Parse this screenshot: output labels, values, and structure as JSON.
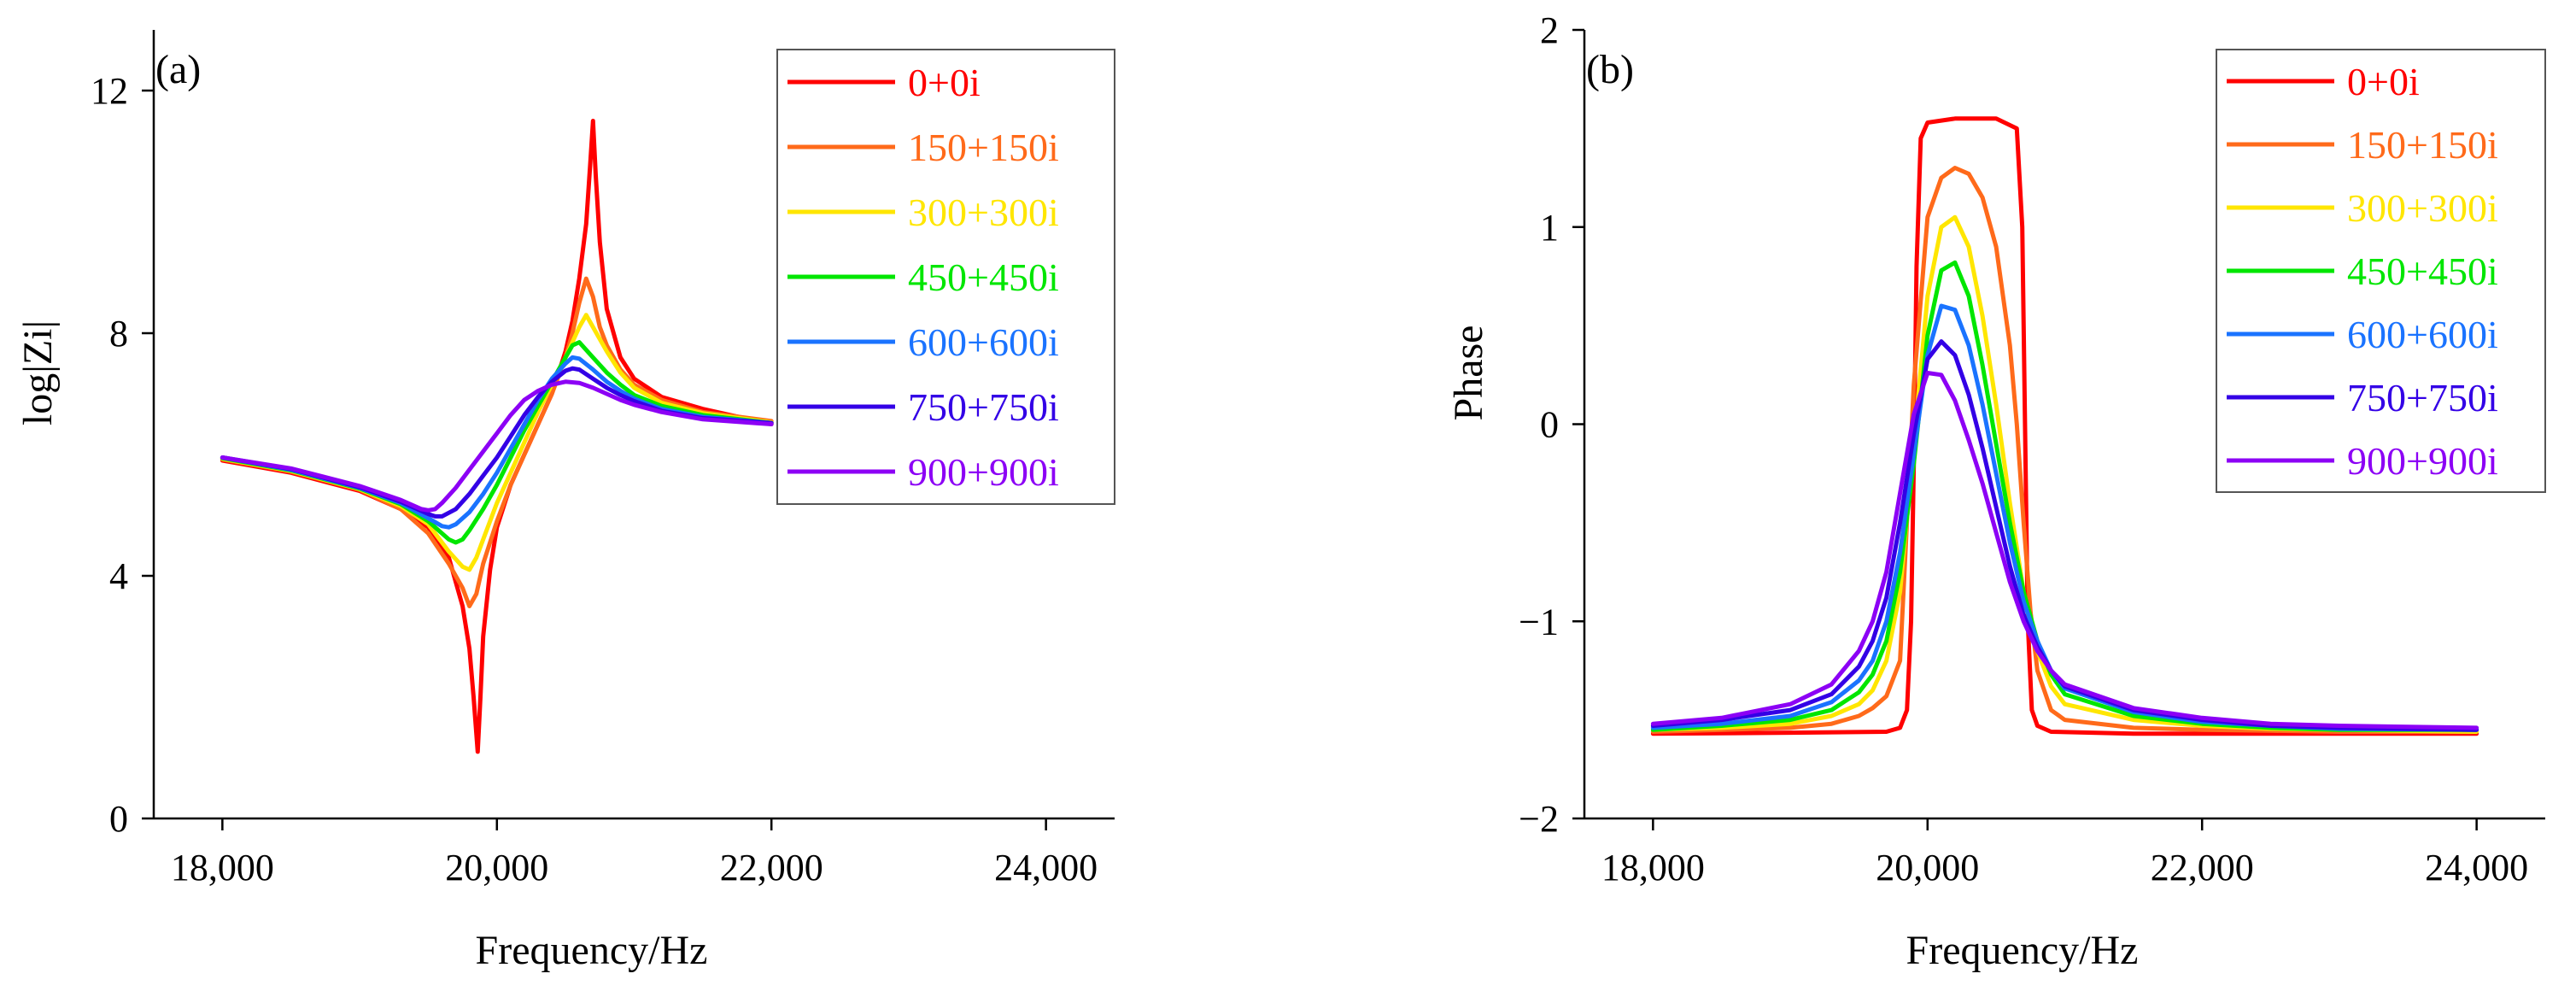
{
  "chart_data": [
    {
      "type": "line",
      "panel_label": "(a)",
      "xlabel": "Frequency/Hz",
      "ylabel": "log|Zi|",
      "xlim": [
        17500,
        24500
      ],
      "ylim": [
        0,
        13
      ],
      "xticks": [
        18000,
        20000,
        22000,
        24000
      ],
      "xtick_labels": [
        "18,000",
        "20,000",
        "22,000",
        "24,000"
      ],
      "yticks": [
        0,
        4,
        8,
        12
      ],
      "ytick_labels": [
        "0",
        "4",
        "8",
        "12"
      ],
      "legend_position": "top-right",
      "series": [
        {
          "name": "0+0i",
          "color": "#ff0000",
          "x": [
            18000,
            18500,
            19000,
            19300,
            19500,
            19650,
            19750,
            19800,
            19830,
            19860,
            19880,
            19900,
            19950,
            20000,
            20100,
            20200,
            20300,
            20400,
            20500,
            20550,
            20600,
            20650,
            20680,
            20700,
            20720,
            20750,
            20800,
            20900,
            21000,
            21200,
            21500,
            22000
          ],
          "y": [
            5.9,
            5.7,
            5.4,
            5.1,
            4.8,
            4.3,
            3.5,
            2.8,
            2.0,
            1.1,
            2.0,
            3.0,
            4.1,
            4.8,
            5.5,
            6.0,
            6.5,
            7.0,
            7.7,
            8.2,
            8.9,
            9.8,
            10.8,
            11.5,
            10.6,
            9.5,
            8.4,
            7.6,
            7.25,
            6.95,
            6.75,
            6.5
          ]
        },
        {
          "name": "150+150i",
          "color": "#ff6a1a",
          "x": [
            18000,
            18500,
            19000,
            19300,
            19500,
            19650,
            19750,
            19800,
            19850,
            19900,
            20000,
            20100,
            20200,
            20300,
            20400,
            20500,
            20550,
            20600,
            20650,
            20700,
            20750,
            20800,
            20900,
            21000,
            21200,
            21500,
            22000
          ],
          "y": [
            5.92,
            5.72,
            5.42,
            5.1,
            4.7,
            4.2,
            3.8,
            3.5,
            3.7,
            4.2,
            4.9,
            5.5,
            6.0,
            6.5,
            7.0,
            7.6,
            8.0,
            8.5,
            8.9,
            8.6,
            8.1,
            7.8,
            7.4,
            7.15,
            6.9,
            6.7,
            6.55
          ]
        },
        {
          "name": "300+300i",
          "color": "#ffe600",
          "x": [
            18000,
            18500,
            19000,
            19300,
            19500,
            19650,
            19750,
            19800,
            19850,
            19900,
            20000,
            20100,
            20200,
            20300,
            20400,
            20500,
            20600,
            20650,
            20700,
            20800,
            20900,
            21000,
            21200,
            21500,
            22000
          ],
          "y": [
            5.93,
            5.73,
            5.43,
            5.15,
            4.85,
            4.4,
            4.15,
            4.1,
            4.3,
            4.6,
            5.2,
            5.7,
            6.2,
            6.7,
            7.15,
            7.6,
            8.1,
            8.3,
            8.1,
            7.7,
            7.35,
            7.1,
            6.85,
            6.68,
            6.53
          ]
        },
        {
          "name": "450+450i",
          "color": "#00e600",
          "x": [
            18000,
            18500,
            19000,
            19300,
            19500,
            19650,
            19700,
            19750,
            19800,
            19900,
            20000,
            20100,
            20200,
            20300,
            20400,
            20500,
            20550,
            20600,
            20700,
            20800,
            20900,
            21000,
            21200,
            21500,
            22000
          ],
          "y": [
            5.94,
            5.74,
            5.44,
            5.18,
            4.9,
            4.6,
            4.55,
            4.6,
            4.75,
            5.1,
            5.5,
            5.95,
            6.4,
            6.8,
            7.2,
            7.6,
            7.8,
            7.85,
            7.6,
            7.35,
            7.15,
            6.98,
            6.8,
            6.65,
            6.52
          ]
        },
        {
          "name": "600+600i",
          "color": "#1a73ff",
          "x": [
            18000,
            18500,
            19000,
            19300,
            19500,
            19600,
            19650,
            19700,
            19800,
            19900,
            20000,
            20100,
            20200,
            20300,
            20400,
            20500,
            20550,
            20600,
            20700,
            20800,
            20900,
            21000,
            21200,
            21500,
            22000
          ],
          "y": [
            5.95,
            5.75,
            5.45,
            5.2,
            4.95,
            4.82,
            4.8,
            4.85,
            5.05,
            5.35,
            5.7,
            6.1,
            6.5,
            6.9,
            7.25,
            7.5,
            7.6,
            7.58,
            7.4,
            7.2,
            7.05,
            6.92,
            6.75,
            6.62,
            6.52
          ]
        },
        {
          "name": "750+750i",
          "color": "#3300e6",
          "x": [
            18000,
            18500,
            19000,
            19300,
            19500,
            19550,
            19600,
            19700,
            19800,
            19900,
            20000,
            20100,
            20200,
            20300,
            20400,
            20500,
            20550,
            20600,
            20700,
            20800,
            20900,
            21000,
            21200,
            21500,
            22000
          ],
          "y": [
            5.95,
            5.76,
            5.46,
            5.22,
            5.02,
            4.98,
            4.98,
            5.1,
            5.35,
            5.65,
            5.95,
            6.3,
            6.65,
            6.95,
            7.2,
            7.38,
            7.42,
            7.4,
            7.25,
            7.1,
            6.98,
            6.88,
            6.72,
            6.6,
            6.52
          ]
        },
        {
          "name": "900+900i",
          "color": "#8c00f5",
          "x": [
            18000,
            18500,
            19000,
            19300,
            19450,
            19500,
            19550,
            19600,
            19700,
            19800,
            19900,
            20000,
            20100,
            20200,
            20300,
            20400,
            20500,
            20600,
            20700,
            20800,
            20900,
            21000,
            21200,
            21500,
            22000
          ],
          "y": [
            5.95,
            5.77,
            5.48,
            5.25,
            5.1,
            5.08,
            5.1,
            5.2,
            5.45,
            5.75,
            6.05,
            6.35,
            6.65,
            6.9,
            7.05,
            7.15,
            7.2,
            7.18,
            7.1,
            7.0,
            6.9,
            6.82,
            6.7,
            6.58,
            6.5
          ]
        }
      ]
    },
    {
      "type": "line",
      "panel_label": "(b)",
      "xlabel": "Frequency/Hz",
      "ylabel": "Phase",
      "xlim": [
        17500,
        24500
      ],
      "ylim": [
        -2,
        2
      ],
      "xticks": [
        18000,
        20000,
        22000,
        24000
      ],
      "xtick_labels": [
        "18,000",
        "20,000",
        "22,000",
        "24,000"
      ],
      "yticks": [
        -2,
        -1,
        0,
        1,
        2
      ],
      "ytick_labels": [
        "−2",
        "−1",
        "0",
        "1",
        "2"
      ],
      "legend_position": "top-right",
      "series": [
        {
          "name": "0+0i",
          "color": "#ff0000",
          "x": [
            18000,
            19000,
            19700,
            19800,
            19850,
            19880,
            19900,
            19920,
            19950,
            20000,
            20200,
            20500,
            20650,
            20690,
            20710,
            20730,
            20760,
            20800,
            20900,
            21500,
            22500,
            24000
          ],
          "y": [
            -1.57,
            -1.565,
            -1.56,
            -1.54,
            -1.45,
            -1.0,
            -0.2,
            0.8,
            1.45,
            1.53,
            1.55,
            1.55,
            1.5,
            1.0,
            0.0,
            -1.0,
            -1.45,
            -1.53,
            -1.56,
            -1.57,
            -1.57,
            -1.57
          ]
        },
        {
          "name": "150+150i",
          "color": "#ff6a1a",
          "x": [
            18000,
            18500,
            19000,
            19300,
            19500,
            19600,
            19700,
            19800,
            19900,
            20000,
            20100,
            20200,
            20300,
            20400,
            20500,
            20600,
            20650,
            20700,
            20750,
            20800,
            20900,
            21000,
            21500,
            22000,
            22500,
            23000,
            24000
          ],
          "y": [
            -1.56,
            -1.55,
            -1.54,
            -1.52,
            -1.48,
            -1.44,
            -1.38,
            -1.2,
            0.2,
            1.05,
            1.25,
            1.3,
            1.27,
            1.15,
            0.9,
            0.4,
            0.0,
            -0.5,
            -0.95,
            -1.25,
            -1.45,
            -1.5,
            -1.54,
            -1.55,
            -1.555,
            -1.56,
            -1.56
          ]
        },
        {
          "name": "300+300i",
          "color": "#ffe600",
          "x": [
            18000,
            18500,
            19000,
            19300,
            19500,
            19600,
            19700,
            19800,
            19900,
            20000,
            20100,
            20200,
            20300,
            20400,
            20500,
            20600,
            20700,
            20800,
            20900,
            21000,
            21500,
            22000,
            22500,
            23000,
            24000
          ],
          "y": [
            -1.55,
            -1.54,
            -1.52,
            -1.48,
            -1.42,
            -1.35,
            -1.2,
            -0.85,
            -0.1,
            0.65,
            1.0,
            1.05,
            0.9,
            0.55,
            0.1,
            -0.4,
            -0.85,
            -1.15,
            -1.33,
            -1.42,
            -1.5,
            -1.53,
            -1.545,
            -1.55,
            -1.56
          ]
        },
        {
          "name": "450+450i",
          "color": "#00e600",
          "x": [
            18000,
            18500,
            19000,
            19300,
            19500,
            19600,
            19700,
            19800,
            19900,
            20000,
            20100,
            20200,
            20300,
            20400,
            20500,
            20600,
            20700,
            20800,
            20900,
            21000,
            21500,
            22000,
            22500,
            23000,
            24000
          ],
          "y": [
            -1.55,
            -1.53,
            -1.5,
            -1.45,
            -1.36,
            -1.27,
            -1.1,
            -0.75,
            -0.2,
            0.45,
            0.78,
            0.82,
            0.65,
            0.3,
            -0.1,
            -0.5,
            -0.85,
            -1.1,
            -1.27,
            -1.37,
            -1.48,
            -1.52,
            -1.54,
            -1.55,
            -1.55
          ]
        },
        {
          "name": "600+600i",
          "color": "#1a73ff",
          "x": [
            18000,
            18500,
            19000,
            19300,
            19500,
            19600,
            19700,
            19800,
            19900,
            20000,
            20100,
            20200,
            20300,
            20400,
            20500,
            20600,
            20700,
            20800,
            20900,
            21000,
            21500,
            22000,
            22500,
            23000,
            24000
          ],
          "y": [
            -1.54,
            -1.52,
            -1.48,
            -1.41,
            -1.3,
            -1.2,
            -1.0,
            -0.65,
            -0.15,
            0.35,
            0.6,
            0.58,
            0.4,
            0.1,
            -0.25,
            -0.6,
            -0.9,
            -1.1,
            -1.25,
            -1.34,
            -1.46,
            -1.51,
            -1.53,
            -1.545,
            -1.55
          ]
        },
        {
          "name": "750+750i",
          "color": "#3300e6",
          "x": [
            18000,
            18500,
            19000,
            19300,
            19500,
            19600,
            19700,
            19800,
            19900,
            20000,
            20100,
            20200,
            20300,
            20400,
            20500,
            20600,
            20700,
            20800,
            20900,
            21000,
            21500,
            22000,
            22500,
            23000,
            24000
          ],
          "y": [
            -1.53,
            -1.5,
            -1.45,
            -1.37,
            -1.23,
            -1.1,
            -0.88,
            -0.5,
            -0.05,
            0.33,
            0.42,
            0.35,
            0.15,
            -0.12,
            -0.42,
            -0.72,
            -0.97,
            -1.13,
            -1.25,
            -1.33,
            -1.45,
            -1.5,
            -1.53,
            -1.54,
            -1.55
          ]
        },
        {
          "name": "900+900i",
          "color": "#8c00f5",
          "x": [
            18000,
            18500,
            19000,
            19300,
            19500,
            19600,
            19700,
            19800,
            19900,
            20000,
            20100,
            20200,
            20300,
            20400,
            20500,
            20600,
            20700,
            20800,
            20900,
            21000,
            21500,
            22000,
            22500,
            23000,
            24000
          ],
          "y": [
            -1.52,
            -1.49,
            -1.42,
            -1.32,
            -1.15,
            -1.0,
            -0.75,
            -0.35,
            0.05,
            0.26,
            0.25,
            0.12,
            -0.08,
            -0.3,
            -0.55,
            -0.8,
            -1.0,
            -1.15,
            -1.25,
            -1.32,
            -1.44,
            -1.49,
            -1.52,
            -1.53,
            -1.54
          ]
        }
      ]
    }
  ]
}
